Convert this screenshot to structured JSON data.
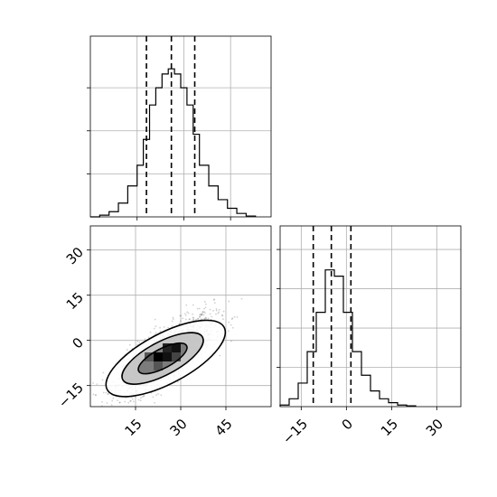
{
  "chart_data": {
    "type": "corner",
    "grid": true,
    "panels": [
      {
        "name": "param-1-marginal",
        "type": "histogram",
        "xlim": [
          0,
          58
        ],
        "ylim": [
          0,
          1.05
        ],
        "bins": [
          {
            "x0": 0,
            "x1": 3,
            "y": 0.0
          },
          {
            "x0": 3,
            "x1": 6,
            "y": 0.01
          },
          {
            "x0": 6,
            "x1": 9,
            "y": 0.03
          },
          {
            "x0": 9,
            "x1": 12,
            "y": 0.08
          },
          {
            "x0": 12,
            "x1": 15,
            "y": 0.18
          },
          {
            "x0": 15,
            "x1": 17,
            "y": 0.3
          },
          {
            "x0": 17,
            "x1": 19,
            "y": 0.45
          },
          {
            "x0": 19,
            "x1": 21,
            "y": 0.65
          },
          {
            "x0": 21,
            "x1": 23,
            "y": 0.75
          },
          {
            "x0": 23,
            "x1": 25,
            "y": 0.83
          },
          {
            "x0": 25,
            "x1": 27,
            "y": 0.86
          },
          {
            "x0": 27,
            "x1": 29,
            "y": 0.83
          },
          {
            "x0": 29,
            "x1": 31,
            "y": 0.75
          },
          {
            "x0": 31,
            "x1": 33,
            "y": 0.65
          },
          {
            "x0": 33,
            "x1": 35,
            "y": 0.48
          },
          {
            "x0": 35,
            "x1": 38,
            "y": 0.3
          },
          {
            "x0": 38,
            "x1": 41,
            "y": 0.18
          },
          {
            "x0": 41,
            "x1": 44,
            "y": 0.1
          },
          {
            "x0": 44,
            "x1": 47,
            "y": 0.05
          },
          {
            "x0": 47,
            "x1": 50,
            "y": 0.02
          },
          {
            "x0": 50,
            "x1": 53,
            "y": 0.005
          }
        ],
        "quantiles": [
          18,
          26,
          33.5
        ],
        "x_ticks": [
          15,
          30,
          45
        ],
        "y_ticks": [
          0.25,
          0.5,
          0.75
        ]
      },
      {
        "name": "param-2-marginal",
        "type": "histogram",
        "xlim": [
          -22,
          38
        ],
        "ylim": [
          0,
          1.15
        ],
        "bins": [
          {
            "x0": -22,
            "x1": -19,
            "y": 0.01
          },
          {
            "x0": -19,
            "x1": -16,
            "y": 0.05
          },
          {
            "x0": -16,
            "x1": -13,
            "y": 0.15
          },
          {
            "x0": -13,
            "x1": -10,
            "y": 0.35
          },
          {
            "x0": -10,
            "x1": -7,
            "y": 0.6
          },
          {
            "x0": -7,
            "x1": -4,
            "y": 0.87
          },
          {
            "x0": -4,
            "x1": -1,
            "y": 0.83
          },
          {
            "x0": -1,
            "x1": 2,
            "y": 0.6
          },
          {
            "x0": 2,
            "x1": 5,
            "y": 0.35
          },
          {
            "x0": 5,
            "x1": 8,
            "y": 0.2
          },
          {
            "x0": 8,
            "x1": 11,
            "y": 0.1
          },
          {
            "x0": 11,
            "x1": 14,
            "y": 0.05
          },
          {
            "x0": 14,
            "x1": 17,
            "y": 0.025
          },
          {
            "x0": 17,
            "x1": 20,
            "y": 0.01
          },
          {
            "x0": 20,
            "x1": 23,
            "y": 0.005
          }
        ],
        "quantiles": [
          -11,
          -5,
          1.5
        ],
        "x_ticks": [
          -15,
          0,
          15,
          30
        ],
        "x_tick_labels": [
          "−15",
          "0",
          "15",
          "30"
        ],
        "y_ticks": [
          0.25,
          0.5,
          0.75,
          1.0
        ]
      },
      {
        "name": "joint-2d",
        "type": "2d-histogram-contour",
        "xlim": [
          0,
          60
        ],
        "ylim": [
          -22,
          38
        ],
        "x_ticks": [
          15,
          30,
          45
        ],
        "x_tick_labels": [
          "15",
          "30",
          "45"
        ],
        "y_ticks": [
          -15,
          0,
          15,
          30
        ],
        "y_tick_labels": [
          "−15",
          "0",
          "15",
          "30"
        ],
        "correlation": 0.75,
        "center": [
          25,
          -5
        ],
        "spread": [
          8,
          6.5
        ],
        "contour_levels": [
          {
            "level": "inner",
            "cx": 24,
            "cy": -6,
            "rx": 9,
            "ry": 3.2,
            "angle_deg": 28
          },
          {
            "level": "middle",
            "cx": 24,
            "cy": -6,
            "rx": 15,
            "ry": 5.5,
            "angle_deg": 28
          },
          {
            "level": "outer",
            "cx": 25,
            "cy": -6,
            "rx": 22,
            "ry": 8.3,
            "angle_deg": 28
          }
        ],
        "density_cells": [
          {
            "x": 21,
            "y": -7,
            "w": 3,
            "h": 3,
            "shade": "#000000"
          },
          {
            "x": 24,
            "y": -7,
            "w": 3,
            "h": 3,
            "shade": "#111111"
          },
          {
            "x": 27,
            "y": -4,
            "w": 3,
            "h": 3,
            "shade": "#111111"
          },
          {
            "x": 24,
            "y": -4,
            "w": 3,
            "h": 3,
            "shade": "#222222"
          },
          {
            "x": 18,
            "y": -7,
            "w": 3,
            "h": 3,
            "shade": "#555555"
          },
          {
            "x": 21,
            "y": -10,
            "w": 3,
            "h": 3,
            "shade": "#555555"
          },
          {
            "x": 27,
            "y": -7,
            "w": 3,
            "h": 3,
            "shade": "#444444"
          }
        ]
      }
    ]
  }
}
